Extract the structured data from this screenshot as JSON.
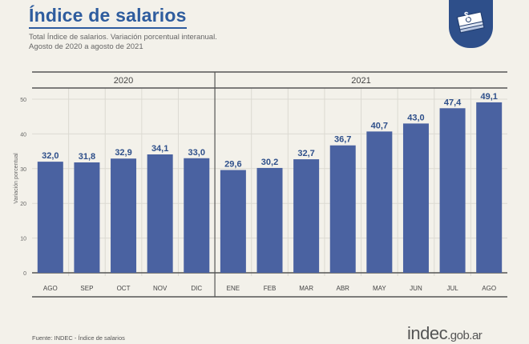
{
  "header": {
    "title": "Índice de salarios",
    "subtitle_line1": "Total Índice de salarios. Variación porcentual interanual.",
    "subtitle_line2": "Agosto de 2020 a agosto de 2021"
  },
  "footer": {
    "source": "Fuente: INDEC - Índice de salarios",
    "logo_main": "indec",
    "logo_suffix": ".gob.ar"
  },
  "badge": {
    "icon": "money-bills-icon"
  },
  "colors": {
    "bar": "#4a62a1",
    "label": "#2e4f8a",
    "title": "#2e5c9e",
    "badge": "#2e4f8a"
  },
  "chart_data": {
    "type": "bar",
    "title": "Índice de salarios",
    "ylabel": "Variación porcentual",
    "xlabel": "",
    "ylim": [
      0,
      50
    ],
    "yticks": [
      0,
      10,
      20,
      30,
      40,
      50
    ],
    "grid": true,
    "groups": [
      {
        "label": "2020",
        "span": [
          0,
          4
        ]
      },
      {
        "label": "2021",
        "span": [
          5,
          12
        ]
      }
    ],
    "categories": [
      "AGO",
      "SEP",
      "OCT",
      "NOV",
      "DIC",
      "ENE",
      "FEB",
      "MAR",
      "ABR",
      "MAY",
      "JUN",
      "JUL",
      "AGO"
    ],
    "values": [
      32.0,
      31.8,
      32.9,
      34.1,
      33.0,
      29.6,
      30.2,
      32.7,
      36.7,
      40.7,
      43.0,
      47.4,
      49.1
    ],
    "value_labels": [
      "32,0",
      "31,8",
      "32,9",
      "34,1",
      "33,0",
      "29,6",
      "30,2",
      "32,7",
      "36,7",
      "40,7",
      "43,0",
      "47,4",
      "49,1"
    ]
  }
}
